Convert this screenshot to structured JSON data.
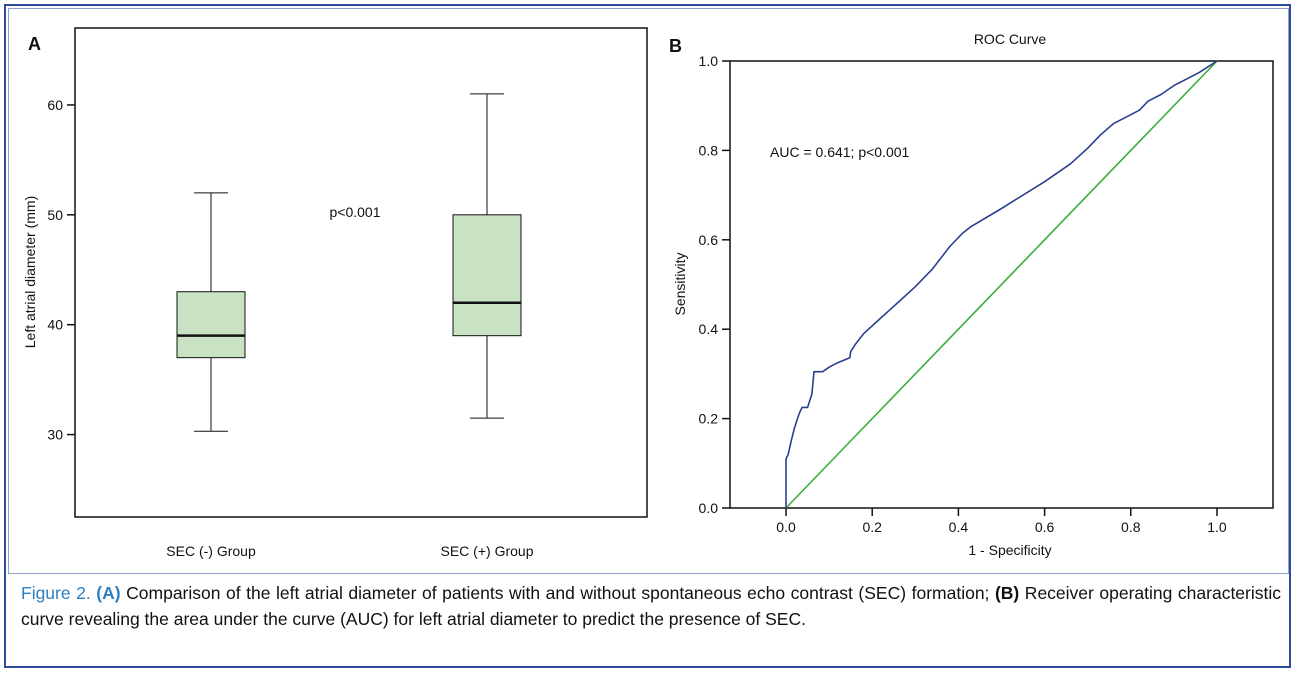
{
  "chart_data": [
    {
      "panel": "A",
      "type": "box",
      "ylabel": "Left atrial diameter (mm)",
      "ylim": [
        22.5,
        67
      ],
      "yticks": [
        30,
        40,
        50,
        60
      ],
      "categories": [
        "SEC (-) Group",
        "SEC (+) Group"
      ],
      "boxes": [
        {
          "name": "SEC (-) Group",
          "min": 30.3,
          "q1": 37,
          "median": 39,
          "q3": 43,
          "max": 52
        },
        {
          "name": "SEC (+) Group",
          "min": 31.5,
          "q1": 39,
          "median": 42,
          "q3": 50,
          "max": 61
        }
      ],
      "annotation": "p<0.001",
      "box_color": "#c9e2c3"
    },
    {
      "panel": "B",
      "type": "line",
      "title": "ROC Curve",
      "xlabel": "1 - Specificity",
      "ylabel": "Sensitivity",
      "xlim": [
        -0.13,
        1.13
      ],
      "ylim": [
        0,
        1
      ],
      "xticks": [
        "0.0",
        "0.2",
        "0.4",
        "0.6",
        "0.8",
        "1.0"
      ],
      "yticks": [
        "0.0",
        "0.2",
        "0.4",
        "0.6",
        "0.8",
        "1.0"
      ],
      "annotation": "AUC = 0.641; p<0.001",
      "series": [
        {
          "color": "#2b3f8f",
          "x": [
            0,
            0,
            0.005,
            0.012,
            0.02,
            0.03,
            0.037,
            0.05,
            0.055,
            0.06,
            0.065,
            0.065,
            0.085,
            0.1,
            0.12,
            0.148,
            0.15,
            0.16,
            0.18,
            0.22,
            0.26,
            0.3,
            0.34,
            0.38,
            0.41,
            0.43,
            0.5,
            0.6,
            0.66,
            0.7,
            0.73,
            0.76,
            0.79,
            0.82,
            0.84,
            0.87,
            0.9,
            0.93,
            0.96,
            1.0
          ],
          "y": [
            0,
            0.11,
            0.12,
            0.15,
            0.18,
            0.21,
            0.225,
            0.225,
            0.24,
            0.255,
            0.305,
            0.305,
            0.305,
            0.315,
            0.325,
            0.336,
            0.35,
            0.365,
            0.39,
            0.425,
            0.46,
            0.495,
            0.535,
            0.585,
            0.615,
            0.63,
            0.67,
            0.73,
            0.77,
            0.805,
            0.835,
            0.86,
            0.875,
            0.89,
            0.91,
            0.925,
            0.945,
            0.96,
            0.975,
            1.0
          ]
        },
        {
          "color": "#3aae3a",
          "x": [
            0,
            1
          ],
          "y": [
            0,
            1
          ]
        }
      ]
    }
  ],
  "labels": {
    "panel_a": "A",
    "panel_b": "B"
  },
  "caption": {
    "figure": "Figure 2.",
    "part_a_tag": "(A)",
    "part_a_text": " Comparison of the left atrial diameter of patients with and without spontaneous echo contrast (SEC) formation; ",
    "part_b_tag": "(B)",
    "part_b_text": " Receiver operating characteristic curve revealing the area under the curve (AUC) for left atrial diameter to predict the presence of SEC."
  }
}
